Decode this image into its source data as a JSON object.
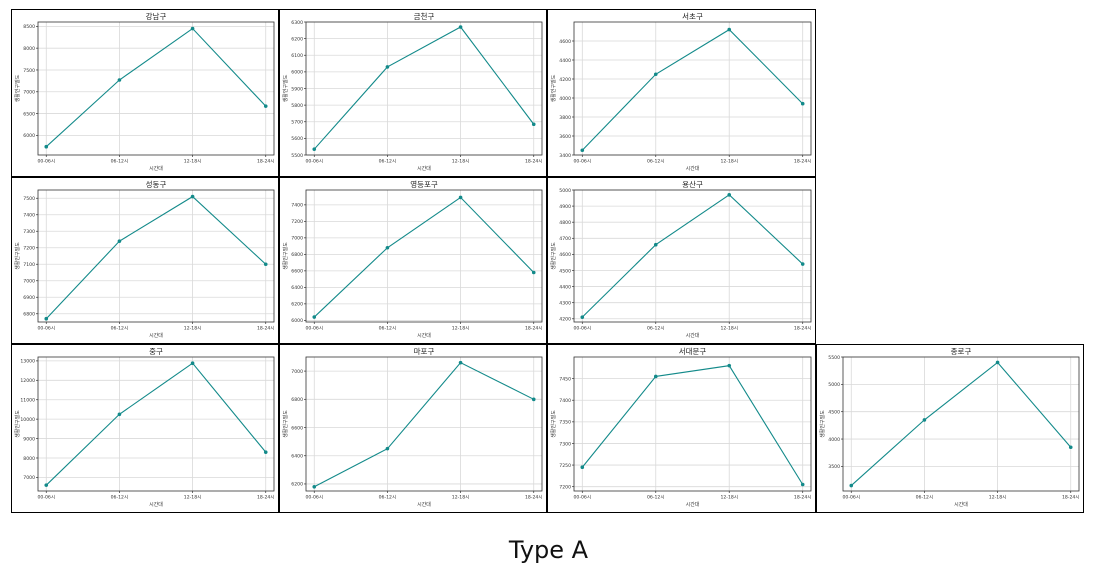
{
  "caption": "Type A",
  "chart_data": [
    {
      "type": "line",
      "title": "강남구",
      "xlabel": "시간대",
      "ylabel": "생활인구밀도",
      "categories": [
        "00-06시",
        "06-12시",
        "12-18시",
        "18-24시"
      ],
      "values": [
        5740,
        7270,
        8450,
        6670
      ],
      "ylim": [
        5550,
        8600
      ],
      "yticks": [
        6000,
        6500,
        7000,
        7500,
        8000,
        8500
      ],
      "grid": true,
      "color": "#138a8a"
    },
    {
      "type": "line",
      "title": "금천구",
      "xlabel": "시간대",
      "ylabel": "생활인구밀도",
      "categories": [
        "00-06시",
        "06-12시",
        "12-18시",
        "18-24시"
      ],
      "values": [
        5535,
        6030,
        6270,
        5685
      ],
      "ylim": [
        5500,
        6300
      ],
      "yticks": [
        5500,
        5600,
        5700,
        5800,
        5900,
        6000,
        6100,
        6200,
        6300
      ],
      "grid": true,
      "color": "#138a8a"
    },
    {
      "type": "line",
      "title": "서초구",
      "xlabel": "시간대",
      "ylabel": "생활인구밀도",
      "categories": [
        "00-06시",
        "06-12시",
        "12-18시",
        "18-24시"
      ],
      "values": [
        3450,
        4250,
        4720,
        3940
      ],
      "ylim": [
        3400,
        4800
      ],
      "yticks": [
        3400,
        3600,
        3800,
        4000,
        4200,
        4400,
        4600
      ],
      "grid": true,
      "color": "#138a8a"
    },
    {
      "type": "line",
      "title": "성동구",
      "xlabel": "시간대",
      "ylabel": "생활인구밀도",
      "categories": [
        "00-06시",
        "06-12시",
        "12-18시",
        "18-24시"
      ],
      "values": [
        6770,
        7240,
        7510,
        7100
      ],
      "ylim": [
        6750,
        7550
      ],
      "yticks": [
        6800,
        6900,
        7000,
        7100,
        7200,
        7300,
        7400,
        7500
      ],
      "grid": true,
      "color": "#138a8a"
    },
    {
      "type": "line",
      "title": "영등포구",
      "xlabel": "시간대",
      "ylabel": "생활인구밀도",
      "categories": [
        "00-06시",
        "06-12시",
        "12-18시",
        "18-24시"
      ],
      "values": [
        6040,
        6880,
        7490,
        6580
      ],
      "ylim": [
        5980,
        7580
      ],
      "yticks": [
        6000,
        6200,
        6400,
        6600,
        6800,
        7000,
        7200,
        7400
      ],
      "grid": true,
      "color": "#138a8a"
    },
    {
      "type": "line",
      "title": "용산구",
      "xlabel": "시간대",
      "ylabel": "생활인구밀도",
      "categories": [
        "00-06시",
        "06-12시",
        "12-18시",
        "18-24시"
      ],
      "values": [
        4210,
        4660,
        4970,
        4540
      ],
      "ylim": [
        4180,
        5000
      ],
      "yticks": [
        4200,
        4300,
        4400,
        4500,
        4600,
        4700,
        4800,
        4900,
        5000
      ],
      "grid": true,
      "color": "#138a8a"
    },
    {
      "type": "line",
      "title": "중구",
      "xlabel": "시간대",
      "ylabel": "생활인구밀도",
      "categories": [
        "00-06시",
        "06-12시",
        "12-18시",
        "18-24시"
      ],
      "values": [
        6600,
        10250,
        12880,
        8300
      ],
      "ylim": [
        6300,
        13200
      ],
      "yticks": [
        7000,
        8000,
        9000,
        10000,
        11000,
        12000,
        13000
      ],
      "grid": true,
      "color": "#138a8a"
    },
    {
      "type": "line",
      "title": "마포구",
      "xlabel": "시간대",
      "ylabel": "생활인구밀도",
      "categories": [
        "00-06시",
        "06-12시",
        "12-18시",
        "18-24시"
      ],
      "values": [
        6180,
        6450,
        7060,
        6800
      ],
      "ylim": [
        6150,
        7100
      ],
      "yticks": [
        6200,
        6400,
        6600,
        6800,
        7000
      ],
      "grid": true,
      "color": "#138a8a"
    },
    {
      "type": "line",
      "title": "서대문구",
      "xlabel": "시간대",
      "ylabel": "생활인구밀도",
      "categories": [
        "00-06시",
        "06-12시",
        "12-18시",
        "18-24시"
      ],
      "values": [
        7245,
        7455,
        7480,
        7205
      ],
      "ylim": [
        7190,
        7500
      ],
      "yticks": [
        7200,
        7250,
        7300,
        7350,
        7400,
        7450
      ],
      "grid": true,
      "color": "#138a8a"
    },
    {
      "type": "line",
      "title": "종로구",
      "xlabel": "시간대",
      "ylabel": "생활인구밀도",
      "categories": [
        "00-06시",
        "06-12시",
        "12-18시",
        "18-24시"
      ],
      "values": [
        3150,
        4350,
        5400,
        3850
      ],
      "ylim": [
        3050,
        5500
      ],
      "yticks": [
        3500,
        4000,
        4500,
        5000,
        5500
      ],
      "grid": true,
      "color": "#138a8a"
    }
  ]
}
